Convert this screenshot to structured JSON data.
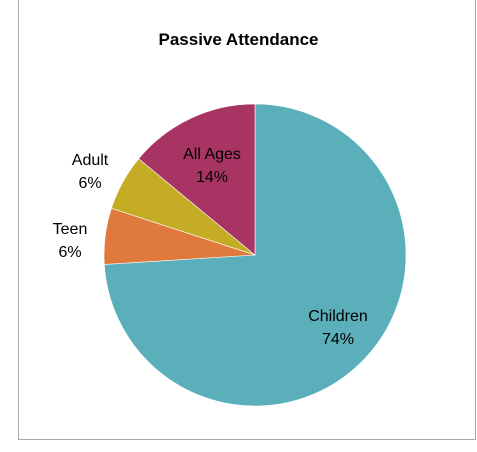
{
  "chart_data": {
    "type": "pie",
    "title": "Passive Attendance",
    "slices": [
      {
        "name": "Children",
        "percent_label": "74%",
        "value": 74,
        "color": "#5aafba"
      },
      {
        "name": "Teen",
        "percent_label": "6%",
        "value": 6,
        "color": "#e07a3c"
      },
      {
        "name": "Adult",
        "percent_label": "6%",
        "value": 6,
        "color": "#c4ac24"
      },
      {
        "name": "All Ages",
        "percent_label": "14%",
        "value": 14,
        "color": "#a83464"
      }
    ],
    "start_angle_deg": 0,
    "direction": "clockwise",
    "legend": "none",
    "data_labels": "category name and percentage"
  }
}
